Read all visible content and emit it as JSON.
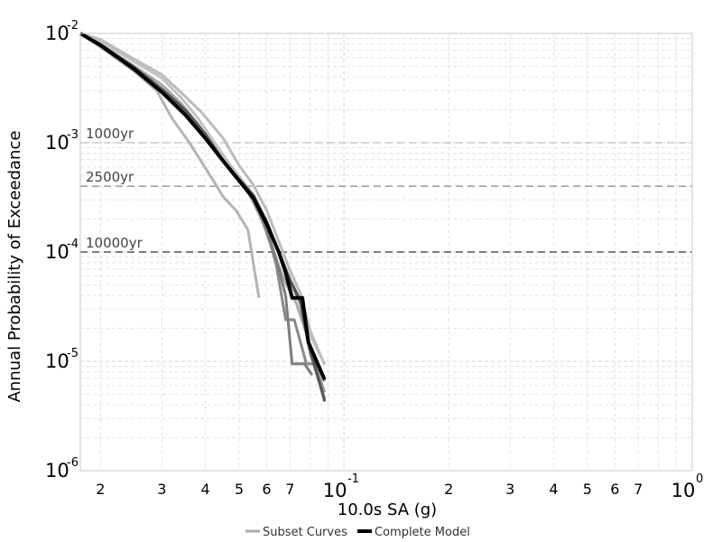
{
  "chart_data": {
    "type": "line",
    "xlabel": "10.0s SA (g)",
    "ylabel": "Annual Probability of Exceedance",
    "xscale": "log",
    "yscale": "log",
    "xlim": [
      0.0175,
      1.0
    ],
    "ylim": [
      1e-06,
      0.01
    ],
    "grid": true,
    "legend_position": "bottom-center",
    "x_minor_labels": [
      {
        "value": 0.02,
        "label": "2"
      },
      {
        "value": 0.03,
        "label": "3"
      },
      {
        "value": 0.04,
        "label": "4"
      },
      {
        "value": 0.05,
        "label": "5"
      },
      {
        "value": 0.06,
        "label": "6"
      },
      {
        "value": 0.07,
        "label": "7"
      },
      {
        "value": 0.2,
        "label": "2"
      },
      {
        "value": 0.3,
        "label": "3"
      },
      {
        "value": 0.4,
        "label": "4"
      },
      {
        "value": 0.5,
        "label": "5"
      },
      {
        "value": 0.6,
        "label": "6"
      },
      {
        "value": 0.7,
        "label": "7"
      }
    ],
    "x_major_labels": [
      {
        "value": 0.1,
        "base": "10",
        "exp": "-1"
      },
      {
        "value": 1.0,
        "base": "10",
        "exp": "0"
      }
    ],
    "y_major_labels": [
      {
        "value": 0.01,
        "base": "10",
        "exp": "-2"
      },
      {
        "value": 0.001,
        "base": "10",
        "exp": "-3"
      },
      {
        "value": 0.0001,
        "base": "10",
        "exp": "-4"
      },
      {
        "value": 1e-05,
        "base": "10",
        "exp": "-5"
      },
      {
        "value": 1e-06,
        "base": "10",
        "exp": "-6"
      }
    ],
    "reference_lines": [
      {
        "label": "1000yr",
        "y": 0.001,
        "color": "#c8c8c8"
      },
      {
        "label": "2500yr",
        "y": 0.0004,
        "color": "#999999"
      },
      {
        "label": "10000yr",
        "y": 0.0001,
        "color": "#555555"
      }
    ],
    "legend": [
      {
        "label": "Subset Curves",
        "color": "#aaaaaa"
      },
      {
        "label": "Complete Model",
        "color": "#000000"
      }
    ],
    "series": [
      {
        "role": "subset",
        "color": "#b4b4b4",
        "x": [
          0.0175,
          0.02,
          0.025,
          0.029,
          0.032,
          0.036,
          0.041,
          0.045,
          0.049,
          0.053,
          0.057
        ],
        "y": [
          0.01,
          0.0075,
          0.0045,
          0.003,
          0.0017,
          0.001,
          0.00052,
          0.00032,
          0.00024,
          0.00016,
          3.8e-05
        ]
      },
      {
        "role": "subset",
        "color": "#c2c2c2",
        "x": [
          0.0175,
          0.02,
          0.025,
          0.03,
          0.034,
          0.038,
          0.043,
          0.048,
          0.053,
          0.059,
          0.065,
          0.07,
          0.075,
          0.081,
          0.088
        ],
        "y": [
          0.01,
          0.0085,
          0.0055,
          0.0039,
          0.0026,
          0.0017,
          0.00095,
          0.00058,
          0.00039,
          0.00021,
          0.0001,
          5.6e-05,
          3.6e-05,
          1.6e-05,
          9.5e-06
        ]
      },
      {
        "role": "subset",
        "color": "#bcbcbc",
        "x": [
          0.0175,
          0.02,
          0.025,
          0.03,
          0.034,
          0.039,
          0.045,
          0.05,
          0.055,
          0.06,
          0.065,
          0.07,
          0.075,
          0.08,
          0.088
        ],
        "y": [
          0.01,
          0.0088,
          0.0058,
          0.0042,
          0.0029,
          0.0019,
          0.0011,
          0.00062,
          0.00041,
          0.00024,
          0.000125,
          6.8e-05,
          4.2e-05,
          1.9e-05,
          9.3e-06
        ]
      },
      {
        "role": "subset",
        "color": "#a8a8a8",
        "x": [
          0.0175,
          0.02,
          0.025,
          0.03,
          0.034,
          0.038,
          0.043,
          0.048,
          0.053,
          0.058,
          0.063,
          0.068,
          0.073,
          0.08,
          0.088
        ],
        "y": [
          0.01,
          0.008,
          0.005,
          0.0034,
          0.0023,
          0.0015,
          0.00085,
          0.00052,
          0.00036,
          0.0002,
          9.5e-05,
          5.2e-05,
          3.4e-05,
          1.4e-05,
          6.5e-06
        ]
      },
      {
        "role": "subset",
        "color": "#9a9a9a",
        "x": [
          0.0175,
          0.02,
          0.025,
          0.03,
          0.035,
          0.04,
          0.045,
          0.05,
          0.055,
          0.06,
          0.065,
          0.07,
          0.075,
          0.08,
          0.088
        ],
        "y": [
          0.01,
          0.0078,
          0.0048,
          0.0031,
          0.002,
          0.0012,
          0.0007,
          0.00047,
          0.00033,
          0.00019,
          0.0001,
          5.5e-05,
          3.5e-05,
          1.3e-05,
          5.2e-06
        ]
      },
      {
        "role": "subset",
        "color": "#8a8a8a",
        "x": [
          0.0175,
          0.02,
          0.025,
          0.03,
          0.035,
          0.04,
          0.045,
          0.05,
          0.055,
          0.06,
          0.064,
          0.068,
          0.072,
          0.078,
          0.083
        ],
        "y": [
          0.01,
          0.0077,
          0.0047,
          0.003,
          0.0019,
          0.0011,
          0.00068,
          0.00045,
          0.0003,
          0.00016,
          7.5e-05,
          2.4e-05,
          2.4e-05,
          9.5e-06,
          9.5e-06
        ]
      },
      {
        "role": "subset",
        "color": "#7e7e7e",
        "x": [
          0.0175,
          0.02,
          0.025,
          0.03,
          0.035,
          0.04,
          0.045,
          0.05,
          0.055,
          0.06,
          0.064,
          0.068,
          0.071,
          0.077,
          0.081
        ],
        "y": [
          0.01,
          0.0077,
          0.0047,
          0.003,
          0.0019,
          0.0011,
          0.00068,
          0.00045,
          0.0003,
          0.00016,
          8.5e-05,
          4e-05,
          9.5e-06,
          9.5e-06,
          7.5e-06
        ]
      },
      {
        "role": "subset",
        "color": "#666666",
        "x": [
          0.0175,
          0.02,
          0.025,
          0.03,
          0.035,
          0.04,
          0.045,
          0.05,
          0.055,
          0.06,
          0.065,
          0.07,
          0.075,
          0.08,
          0.088
        ],
        "y": [
          0.01,
          0.0079,
          0.0049,
          0.0031,
          0.002,
          0.0012,
          0.00068,
          0.00046,
          0.00033,
          0.00019,
          0.0001,
          5.5e-05,
          3.4e-05,
          1.2e-05,
          4.5e-06
        ]
      },
      {
        "role": "subset",
        "color": "#555555",
        "x": [
          0.0175,
          0.02,
          0.025,
          0.03,
          0.035,
          0.04,
          0.045,
          0.05,
          0.055,
          0.06,
          0.065,
          0.07,
          0.075,
          0.08,
          0.088
        ],
        "y": [
          0.01,
          0.0079,
          0.0049,
          0.0031,
          0.002,
          0.0012,
          0.00068,
          0.00046,
          0.00033,
          0.00019,
          0.0001,
          5.6e-05,
          3.6e-05,
          1.3e-05,
          4.3e-06
        ]
      },
      {
        "role": "complete",
        "color": "#000000",
        "x": [
          0.0175,
          0.02,
          0.025,
          0.03,
          0.035,
          0.04,
          0.045,
          0.05,
          0.055,
          0.06,
          0.065,
          0.068,
          0.071,
          0.076,
          0.079,
          0.088
        ],
        "y": [
          0.01,
          0.0078,
          0.0047,
          0.0029,
          0.0018,
          0.0011,
          0.00068,
          0.00045,
          0.00031,
          0.00018,
          0.0001,
          6.5e-05,
          3.8e-05,
          3.8e-05,
          1.5e-05,
          6.8e-06
        ]
      }
    ]
  }
}
